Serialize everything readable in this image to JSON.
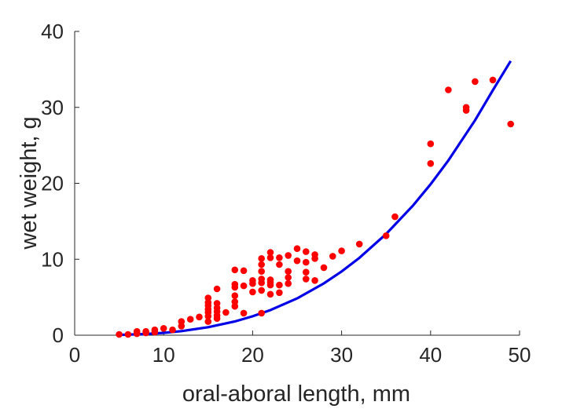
{
  "chart_data": {
    "type": "scatter",
    "xlabel": "oral-aboral length, mm",
    "ylabel": "wet weight, g",
    "xlim": [
      0,
      50
    ],
    "ylim": [
      0,
      40
    ],
    "xticks": [
      0,
      10,
      20,
      30,
      40,
      50
    ],
    "yticks": [
      0,
      10,
      20,
      30,
      40
    ],
    "grid": false,
    "legend": "none",
    "series": [
      {
        "kind": "points",
        "color": "#ff0000",
        "x": [
          5,
          6,
          7,
          7,
          8,
          8,
          9,
          9,
          10,
          11,
          12,
          12,
          13,
          14,
          15,
          15,
          15,
          15,
          15,
          15,
          15,
          16,
          16,
          16,
          16,
          16,
          16,
          17,
          18,
          18,
          18,
          18,
          18,
          18,
          19,
          19,
          19,
          20,
          20,
          20,
          21,
          21,
          21,
          21,
          21,
          21,
          21,
          22,
          22,
          22,
          22,
          22,
          22,
          23,
          23,
          23,
          23,
          24,
          24,
          24,
          24,
          25,
          25,
          26,
          26,
          26,
          26,
          27,
          27,
          27,
          28,
          29,
          30,
          32,
          35,
          36,
          40,
          40,
          42,
          44,
          44,
          45,
          47,
          49
        ],
        "y": [
          0.1,
          0.1,
          0.2,
          0.5,
          0.3,
          0.5,
          0.4,
          0.7,
          0.9,
          0.7,
          1.2,
          1.8,
          2.1,
          2.4,
          1.8,
          2.5,
          3.0,
          3.4,
          3.9,
          4.3,
          4.9,
          2.2,
          2.6,
          3.1,
          3.6,
          4.2,
          6.1,
          3.0,
          3.8,
          4.4,
          5.2,
          6.3,
          6.7,
          8.6,
          2.9,
          6.5,
          8.5,
          5.7,
          6.8,
          7.2,
          2.9,
          5.9,
          6.9,
          7.4,
          8.4,
          9.3,
          10.1,
          5.4,
          6.6,
          7.0,
          7.3,
          10.2,
          10.9,
          5.6,
          6.6,
          9.3,
          10.2,
          6.8,
          7.6,
          8.4,
          10.5,
          9.8,
          11.4,
          7.4,
          8.3,
          9.6,
          11.0,
          7.2,
          10.1,
          10.6,
          8.9,
          10.4,
          11.1,
          12.0,
          13.1,
          15.6,
          22.6,
          25.2,
          32.3,
          29.6,
          30.0,
          33.4,
          33.6,
          27.8
        ]
      },
      {
        "kind": "fit-curve",
        "color": "#0000e6",
        "x": [
          5,
          8,
          10,
          12,
          15,
          18,
          20,
          22,
          25,
          28,
          30,
          32,
          35,
          38,
          40,
          42,
          45,
          47,
          49
        ],
        "y": [
          0.04,
          0.16,
          0.31,
          0.54,
          1.05,
          1.81,
          2.49,
          3.31,
          4.85,
          6.82,
          8.39,
          10.18,
          13.32,
          17.04,
          19.88,
          23.01,
          28.3,
          32.25,
          36.1
        ]
      }
    ]
  }
}
